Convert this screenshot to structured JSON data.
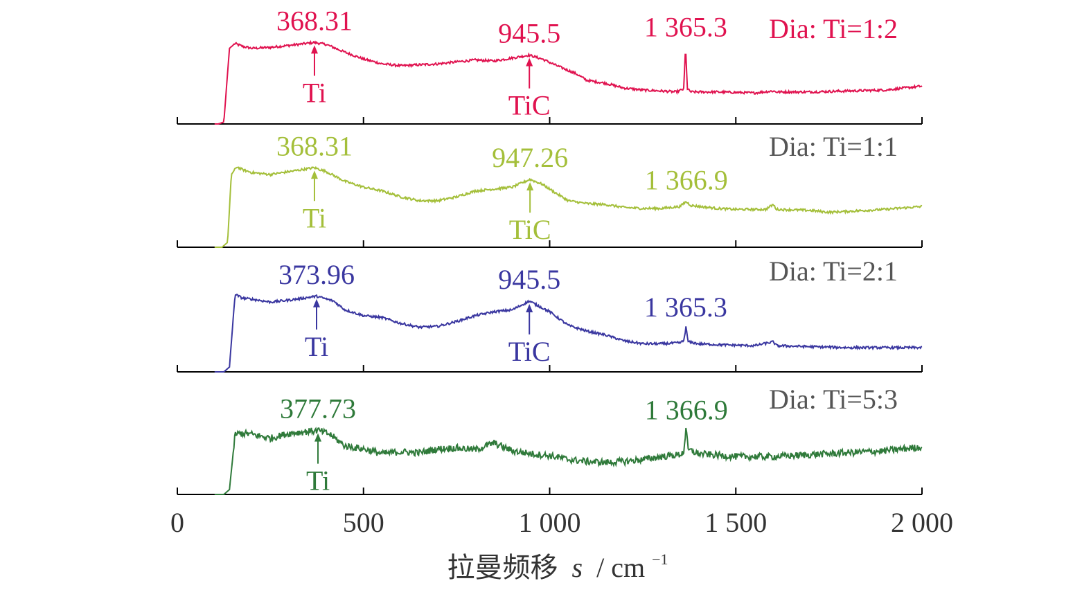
{
  "chart_data": {
    "type": "line",
    "xlabel_text": "拉曼频移",
    "xlabel_var": "s",
    "xlabel_unit": "/ cm",
    "xlabel_sup": "−1",
    "xlim": [
      0,
      2000
    ],
    "xticks": [
      0,
      500,
      1000,
      1500,
      2000
    ],
    "xtick_labels": [
      "0",
      "500",
      "1 000",
      "1 500",
      "2 000"
    ],
    "grid": false,
    "series": [
      {
        "name": "Dia: Ti=1:2",
        "color": "#e0124f",
        "profile": [
          [
            0,
            0
          ],
          [
            110,
            0
          ],
          [
            125,
            0.02
          ],
          [
            140,
            0.78
          ],
          [
            155,
            0.83
          ],
          [
            175,
            0.8
          ],
          [
            200,
            0.78
          ],
          [
            250,
            0.79
          ],
          [
            300,
            0.81
          ],
          [
            368,
            0.84
          ],
          [
            400,
            0.82
          ],
          [
            450,
            0.74
          ],
          [
            500,
            0.67
          ],
          [
            550,
            0.62
          ],
          [
            600,
            0.6
          ],
          [
            650,
            0.61
          ],
          [
            700,
            0.62
          ],
          [
            750,
            0.64
          ],
          [
            800,
            0.66
          ],
          [
            850,
            0.65
          ],
          [
            900,
            0.68
          ],
          [
            945,
            0.71
          ],
          [
            980,
            0.67
          ],
          [
            1020,
            0.6
          ],
          [
            1070,
            0.52
          ],
          [
            1100,
            0.45
          ],
          [
            1150,
            0.42
          ],
          [
            1200,
            0.37
          ],
          [
            1250,
            0.35
          ],
          [
            1300,
            0.34
          ],
          [
            1340,
            0.33
          ],
          [
            1360,
            0.36
          ],
          [
            1365,
            0.8
          ],
          [
            1370,
            0.36
          ],
          [
            1380,
            0.33
          ],
          [
            1450,
            0.33
          ],
          [
            1550,
            0.32
          ],
          [
            1600,
            0.34
          ],
          [
            1610,
            0.33
          ],
          [
            1700,
            0.33
          ],
          [
            1800,
            0.34
          ],
          [
            1900,
            0.35
          ],
          [
            2000,
            0.39
          ]
        ],
        "annotations": [
          {
            "x": 368.31,
            "value": "368.31",
            "phase": "Ti"
          },
          {
            "x": 945.5,
            "value": "945.5",
            "phase": "TiC"
          },
          {
            "x": 1365.3,
            "value": "1 365.3",
            "phase": ""
          }
        ]
      },
      {
        "name": "Dia: Ti=1:1",
        "color": "#a4bf3a",
        "profile": [
          [
            0,
            0
          ],
          [
            120,
            0
          ],
          [
            135,
            0.05
          ],
          [
            145,
            0.75
          ],
          [
            160,
            0.83
          ],
          [
            175,
            0.8
          ],
          [
            200,
            0.77
          ],
          [
            250,
            0.75
          ],
          [
            300,
            0.78
          ],
          [
            368,
            0.82
          ],
          [
            400,
            0.78
          ],
          [
            450,
            0.68
          ],
          [
            500,
            0.62
          ],
          [
            550,
            0.58
          ],
          [
            600,
            0.52
          ],
          [
            650,
            0.48
          ],
          [
            700,
            0.48
          ],
          [
            750,
            0.52
          ],
          [
            800,
            0.58
          ],
          [
            850,
            0.6
          ],
          [
            900,
            0.62
          ],
          [
            947,
            0.7
          ],
          [
            980,
            0.65
          ],
          [
            1020,
            0.55
          ],
          [
            1050,
            0.48
          ],
          [
            1100,
            0.45
          ],
          [
            1150,
            0.44
          ],
          [
            1200,
            0.41
          ],
          [
            1250,
            0.4
          ],
          [
            1300,
            0.4
          ],
          [
            1350,
            0.42
          ],
          [
            1366,
            0.47
          ],
          [
            1380,
            0.43
          ],
          [
            1450,
            0.4
          ],
          [
            1500,
            0.39
          ],
          [
            1580,
            0.39
          ],
          [
            1600,
            0.44
          ],
          [
            1610,
            0.39
          ],
          [
            1700,
            0.38
          ],
          [
            1750,
            0.36
          ],
          [
            1800,
            0.37
          ],
          [
            1900,
            0.39
          ],
          [
            2000,
            0.42
          ]
        ],
        "annotations": [
          {
            "x": 368.31,
            "value": "368.31",
            "phase": "Ti"
          },
          {
            "x": 947.26,
            "value": "947.26",
            "phase": "TiC"
          },
          {
            "x": 1366.9,
            "value": "1 366.9",
            "phase": ""
          }
        ]
      },
      {
        "name": "Dia: Ti=2:1",
        "color": "#3a37a0",
        "profile": [
          [
            0,
            0
          ],
          [
            125,
            0
          ],
          [
            140,
            0.05
          ],
          [
            155,
            0.8
          ],
          [
            175,
            0.76
          ],
          [
            200,
            0.75
          ],
          [
            250,
            0.72
          ],
          [
            300,
            0.74
          ],
          [
            374,
            0.78
          ],
          [
            420,
            0.73
          ],
          [
            450,
            0.64
          ],
          [
            500,
            0.58
          ],
          [
            550,
            0.56
          ],
          [
            600,
            0.5
          ],
          [
            650,
            0.46
          ],
          [
            700,
            0.47
          ],
          [
            750,
            0.52
          ],
          [
            800,
            0.58
          ],
          [
            850,
            0.62
          ],
          [
            900,
            0.64
          ],
          [
            945,
            0.73
          ],
          [
            1000,
            0.62
          ],
          [
            1050,
            0.48
          ],
          [
            1100,
            0.42
          ],
          [
            1150,
            0.38
          ],
          [
            1200,
            0.32
          ],
          [
            1250,
            0.29
          ],
          [
            1300,
            0.29
          ],
          [
            1350,
            0.3
          ],
          [
            1360,
            0.32
          ],
          [
            1366,
            0.46
          ],
          [
            1372,
            0.31
          ],
          [
            1400,
            0.29
          ],
          [
            1450,
            0.28
          ],
          [
            1550,
            0.27
          ],
          [
            1600,
            0.31
          ],
          [
            1610,
            0.27
          ],
          [
            1700,
            0.26
          ],
          [
            1800,
            0.25
          ],
          [
            1900,
            0.25
          ],
          [
            2000,
            0.25
          ]
        ],
        "annotations": [
          {
            "x": 373.96,
            "value": "373.96",
            "phase": "Ti"
          },
          {
            "x": 945.5,
            "value": "945.5",
            "phase": "TiC"
          },
          {
            "x": 1365.3,
            "value": "1 365.3",
            "phase": ""
          }
        ]
      },
      {
        "name": "Dia: Ti=5:3",
        "color": "#2f7a3a",
        "profile": [
          [
            0,
            0
          ],
          [
            125,
            0
          ],
          [
            140,
            0.05
          ],
          [
            155,
            0.62
          ],
          [
            175,
            0.63
          ],
          [
            200,
            0.62
          ],
          [
            250,
            0.58
          ],
          [
            300,
            0.63
          ],
          [
            378,
            0.66
          ],
          [
            410,
            0.62
          ],
          [
            450,
            0.5
          ],
          [
            500,
            0.47
          ],
          [
            550,
            0.42
          ],
          [
            600,
            0.44
          ],
          [
            650,
            0.43
          ],
          [
            700,
            0.47
          ],
          [
            750,
            0.48
          ],
          [
            800,
            0.46
          ],
          [
            850,
            0.53
          ],
          [
            900,
            0.45
          ],
          [
            950,
            0.42
          ],
          [
            1000,
            0.4
          ],
          [
            1050,
            0.36
          ],
          [
            1100,
            0.34
          ],
          [
            1150,
            0.33
          ],
          [
            1200,
            0.34
          ],
          [
            1250,
            0.36
          ],
          [
            1300,
            0.39
          ],
          [
            1350,
            0.41
          ],
          [
            1360,
            0.44
          ],
          [
            1366,
            0.68
          ],
          [
            1372,
            0.46
          ],
          [
            1400,
            0.42
          ],
          [
            1500,
            0.39
          ],
          [
            1600,
            0.39
          ],
          [
            1700,
            0.41
          ],
          [
            1800,
            0.43
          ],
          [
            1900,
            0.45
          ],
          [
            2000,
            0.49
          ]
        ],
        "annotations": [
          {
            "x": 377.73,
            "value": "377.73",
            "phase": "Ti"
          },
          {
            "x": 1366.9,
            "value": "1 366.9",
            "phase": ""
          }
        ]
      }
    ]
  }
}
